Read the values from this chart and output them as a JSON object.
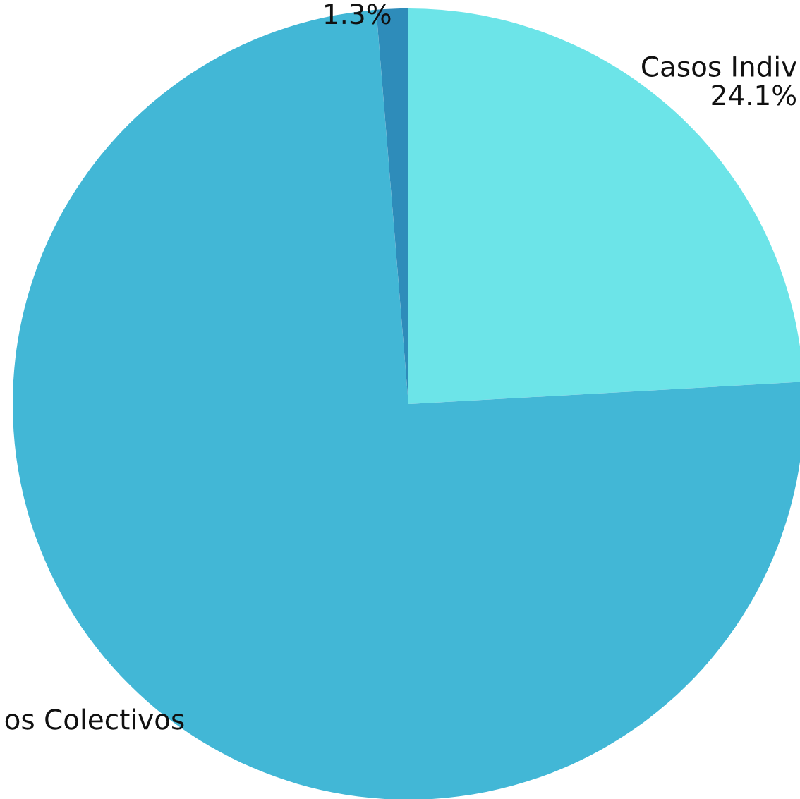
{
  "chart_data": {
    "type": "pie",
    "categories": [
      "Casos Indiv",
      "os Colectivos",
      null
    ],
    "values": [
      24.1,
      74.6,
      1.3
    ],
    "colors": [
      "#6ce4e8",
      "#42b7d6",
      "#2e8cba"
    ],
    "value_labels": [
      "24.1%",
      null,
      "1.3%"
    ],
    "legend": false
  }
}
